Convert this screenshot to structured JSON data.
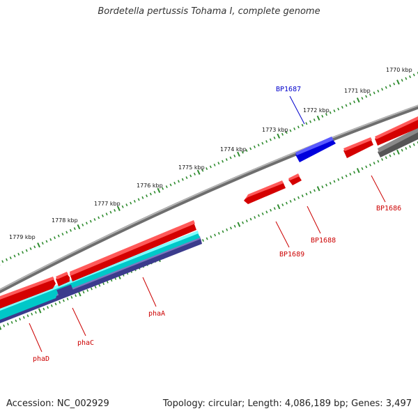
{
  "title": "Bordetella pertussis Tohama I, complete genome",
  "footer": {
    "accession": "Accession: NC_002929",
    "topology": "Topology: circular; Length: 4,086,189 bp; Genes: 3,497"
  },
  "scale_labels": [
    "1770 kbp",
    "1771 kbp",
    "1772 kbp",
    "1773 kbp",
    "1774 kbp",
    "1775 kbp",
    "1776 kbp",
    "1777 kbp",
    "1778 kbp",
    "1779 kbp"
  ],
  "genes": [
    {
      "name": "BP1687",
      "color": "#0000cc"
    },
    {
      "name": "BP1686",
      "color": "#cc0000"
    },
    {
      "name": "BP1688",
      "color": "#cc0000"
    },
    {
      "name": "BP1689",
      "color": "#cc0000"
    },
    {
      "name": "phaA",
      "color": "#cc0000"
    },
    {
      "name": "phaC",
      "color": "#cc0000"
    },
    {
      "name": "phaD",
      "color": "#cc0000"
    }
  ],
  "colors": {
    "backbone": "#8c8c8c",
    "forward_cds": "#ff0000",
    "reverse_cds_blue": "#0000ff",
    "cyan_feature": "#00ffff",
    "navy_feature": "#4b4b9e",
    "gray_feature": "#666666",
    "tick": "#2e8b2e"
  }
}
